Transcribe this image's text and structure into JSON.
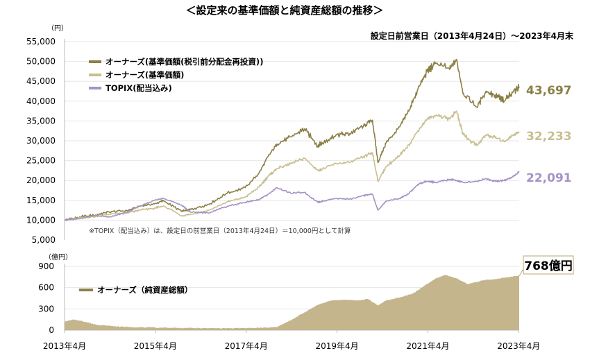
{
  "title": "＜設定来の基準価額と純資産総額の推移＞",
  "subtitle": "設定日前営業日（2013年4月24日）～2023年4月末",
  "colors": {
    "nav_reinvest": "#8a8046",
    "nav": "#c9be91",
    "topix": "#a592c7",
    "aum_fill": "#c4b58c",
    "axis_text": "#000000",
    "grid": "#e6e6e6"
  },
  "chart_data": [
    {
      "type": "line",
      "yunit": "（円）",
      "ylim": [
        5000,
        55000
      ],
      "yticks": [
        "5,000",
        "10,000",
        "15,000",
        "20,000",
        "25,000",
        "30,000",
        "35,000",
        "40,000",
        "45,000",
        "50,000",
        "55,000"
      ],
      "xlim": [
        2013.32,
        2023.33
      ],
      "series": [
        {
          "name": "オーナーズ(基準価額(税引前分配金再投資))",
          "end_label": "43,697",
          "points": [
            [
              2013.32,
              10000
            ],
            [
              2013.6,
              10700
            ],
            [
              2014.0,
              11300
            ],
            [
              2014.3,
              12100
            ],
            [
              2014.7,
              12400
            ],
            [
              2015.0,
              13600
            ],
            [
              2015.3,
              14100
            ],
            [
              2015.5,
              14900
            ],
            [
              2015.9,
              12200
            ],
            [
              2016.1,
              12700
            ],
            [
              2016.5,
              14000
            ],
            [
              2016.9,
              16800
            ],
            [
              2017.3,
              18200
            ],
            [
              2017.6,
              21800
            ],
            [
              2017.8,
              26000
            ],
            [
              2018.0,
              29200
            ],
            [
              2018.3,
              31000
            ],
            [
              2018.6,
              33000
            ],
            [
              2018.9,
              28800
            ],
            [
              2019.0,
              29500
            ],
            [
              2019.3,
              31500
            ],
            [
              2019.6,
              31800
            ],
            [
              2019.9,
              33800
            ],
            [
              2020.1,
              35200
            ],
            [
              2020.22,
              24500
            ],
            [
              2020.4,
              29500
            ],
            [
              2020.7,
              33500
            ],
            [
              2020.9,
              37500
            ],
            [
              2021.1,
              43000
            ],
            [
              2021.3,
              47500
            ],
            [
              2021.5,
              49500
            ],
            [
              2021.8,
              48000
            ],
            [
              2021.95,
              50500
            ],
            [
              2022.1,
              42000
            ],
            [
              2022.4,
              38500
            ],
            [
              2022.6,
              42500
            ],
            [
              2022.8,
              41500
            ],
            [
              2023.0,
              40000
            ],
            [
              2023.2,
              42500
            ],
            [
              2023.33,
              43697
            ]
          ]
        },
        {
          "name": "オーナーズ(基準価額)",
          "end_label": "32,233",
          "points": [
            [
              2013.32,
              10000
            ],
            [
              2013.6,
              10500
            ],
            [
              2014.0,
              10900
            ],
            [
              2014.3,
              11500
            ],
            [
              2014.7,
              11800
            ],
            [
              2015.0,
              12600
            ],
            [
              2015.3,
              13000
            ],
            [
              2015.5,
              13600
            ],
            [
              2015.9,
              11100
            ],
            [
              2016.1,
              11500
            ],
            [
              2016.5,
              12500
            ],
            [
              2016.9,
              14600
            ],
            [
              2017.3,
              15800
            ],
            [
              2017.6,
              18300
            ],
            [
              2017.8,
              21000
            ],
            [
              2018.0,
              23000
            ],
            [
              2018.3,
              24200
            ],
            [
              2018.6,
              25600
            ],
            [
              2018.9,
              22500
            ],
            [
              2019.0,
              22900
            ],
            [
              2019.3,
              24300
            ],
            [
              2019.6,
              24500
            ],
            [
              2019.9,
              26000
            ],
            [
              2020.1,
              27000
            ],
            [
              2020.22,
              19800
            ],
            [
              2020.4,
              23500
            ],
            [
              2020.7,
              26300
            ],
            [
              2020.9,
              29000
            ],
            [
              2021.1,
              32500
            ],
            [
              2021.3,
              35500
            ],
            [
              2021.5,
              36500
            ],
            [
              2021.8,
              35500
            ],
            [
              2021.95,
              37500
            ],
            [
              2022.1,
              31500
            ],
            [
              2022.4,
              28800
            ],
            [
              2022.6,
              31500
            ],
            [
              2022.8,
              30800
            ],
            [
              2023.0,
              29800
            ],
            [
              2023.2,
              31500
            ],
            [
              2023.33,
              32233
            ]
          ]
        },
        {
          "name": "TOPIX(配当込み)",
          "end_label": "22,091",
          "points": [
            [
              2013.32,
              10000
            ],
            [
              2013.6,
              10300
            ],
            [
              2014.0,
              11200
            ],
            [
              2014.3,
              10800
            ],
            [
              2014.7,
              12000
            ],
            [
              2015.0,
              13600
            ],
            [
              2015.3,
              15000
            ],
            [
              2015.5,
              15500
            ],
            [
              2015.9,
              13800
            ],
            [
              2016.1,
              12000
            ],
            [
              2016.5,
              11800
            ],
            [
              2016.9,
              13500
            ],
            [
              2017.3,
              14500
            ],
            [
              2017.6,
              15200
            ],
            [
              2017.8,
              16500
            ],
            [
              2018.0,
              18200
            ],
            [
              2018.3,
              16800
            ],
            [
              2018.6,
              17000
            ],
            [
              2018.9,
              14500
            ],
            [
              2019.0,
              14800
            ],
            [
              2019.3,
              15500
            ],
            [
              2019.6,
              15300
            ],
            [
              2019.9,
              16200
            ],
            [
              2020.1,
              16500
            ],
            [
              2020.22,
              12500
            ],
            [
              2020.4,
              14800
            ],
            [
              2020.7,
              15500
            ],
            [
              2020.9,
              16700
            ],
            [
              2021.1,
              19000
            ],
            [
              2021.3,
              19800
            ],
            [
              2021.5,
              19500
            ],
            [
              2021.8,
              20300
            ],
            [
              2021.95,
              20000
            ],
            [
              2022.1,
              19500
            ],
            [
              2022.4,
              19800
            ],
            [
              2022.6,
              20500
            ],
            [
              2022.8,
              19800
            ],
            [
              2023.0,
              20000
            ],
            [
              2023.2,
              21000
            ],
            [
              2023.33,
              22091
            ]
          ]
        }
      ],
      "note": "※TOPIX（配当込み）は、設定日の前営業日（2013年4月24日）＝10,000円として計算"
    },
    {
      "type": "area",
      "yunit": "（億円）",
      "ylim": [
        0,
        900
      ],
      "yticks": [
        "0",
        "300",
        "600",
        "900"
      ],
      "xlim": [
        2013.32,
        2023.33
      ],
      "xticks": [
        "2013年4月",
        "2015年4月",
        "2017年4月",
        "2019年4月",
        "2021年4月",
        "2023年4月"
      ],
      "xtick_values": [
        2013.32,
        2015.32,
        2017.32,
        2019.32,
        2021.32,
        2023.32
      ],
      "series": [
        {
          "name": "オーナーズ（純資産総額）",
          "end_label": "768億円",
          "points": [
            [
              2013.32,
              120
            ],
            [
              2013.5,
              150
            ],
            [
              2013.7,
              130
            ],
            [
              2014.0,
              80
            ],
            [
              2014.3,
              60
            ],
            [
              2014.7,
              45
            ],
            [
              2015.0,
              40
            ],
            [
              2015.5,
              35
            ],
            [
              2016.0,
              30
            ],
            [
              2016.5,
              28
            ],
            [
              2017.0,
              28
            ],
            [
              2017.5,
              30
            ],
            [
              2018.0,
              45
            ],
            [
              2018.3,
              140
            ],
            [
              2018.6,
              250
            ],
            [
              2018.9,
              360
            ],
            [
              2019.2,
              420
            ],
            [
              2019.5,
              430
            ],
            [
              2019.8,
              420
            ],
            [
              2020.0,
              440
            ],
            [
              2020.22,
              350
            ],
            [
              2020.4,
              420
            ],
            [
              2020.7,
              460
            ],
            [
              2021.0,
              520
            ],
            [
              2021.3,
              650
            ],
            [
              2021.5,
              730
            ],
            [
              2021.7,
              780
            ],
            [
              2021.95,
              730
            ],
            [
              2022.2,
              650
            ],
            [
              2022.5,
              700
            ],
            [
              2022.8,
              720
            ],
            [
              2023.0,
              740
            ],
            [
              2023.2,
              760
            ],
            [
              2023.33,
              768
            ]
          ]
        }
      ]
    }
  ]
}
